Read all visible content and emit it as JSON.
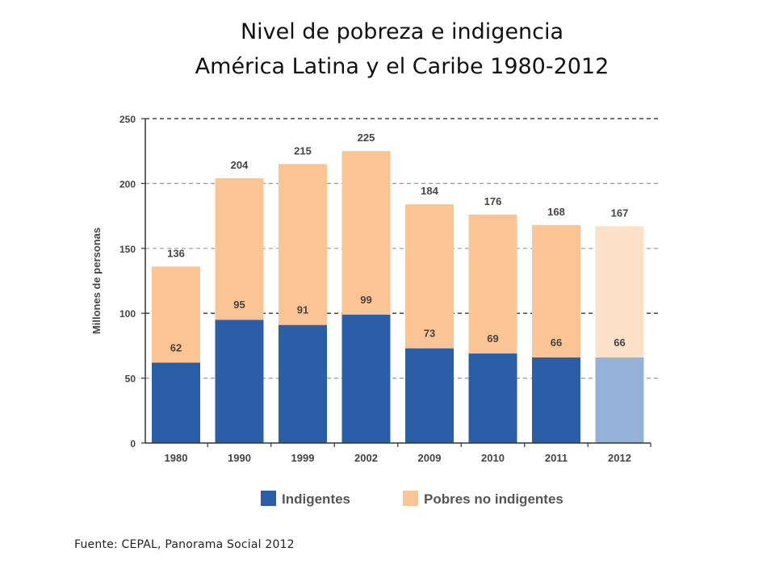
{
  "slide": {
    "title_line1": "Nivel de pobreza e indigencia",
    "title_line2": "América Latina y el Caribe 1980-2012",
    "source": "Fuente: CEPAL, Panorama Social 2012"
  },
  "chart_data": {
    "type": "bar",
    "stacked": true,
    "categories": [
      "1980",
      "1990",
      "1999",
      "2002",
      "2009",
      "2010",
      "2011",
      "2012"
    ],
    "series": [
      {
        "name": "Indigentes",
        "values": [
          62,
          95,
          91,
          99,
          73,
          69,
          66,
          66
        ]
      },
      {
        "name": "Pobres no indigentes",
        "values": [
          74,
          109,
          124,
          126,
          111,
          107,
          102,
          101
        ]
      }
    ],
    "totals": [
      136,
      204,
      215,
      225,
      184,
      176,
      168,
      167
    ],
    "ylabel": "Millones de personas",
    "xlabel": "",
    "ylim": [
      0,
      250
    ],
    "yticks": [
      0,
      50,
      100,
      150,
      200,
      250
    ],
    "grid": true,
    "legend_position": "bottom",
    "highlighted_category": "2012",
    "colors": {
      "Indigentes": "#2a5fa8",
      "Pobres no indigentes": "#fbc495",
      "Indigentes_2012": "#94b1d7",
      "Pobres no indigentes_2012": "#fde0c8"
    }
  }
}
